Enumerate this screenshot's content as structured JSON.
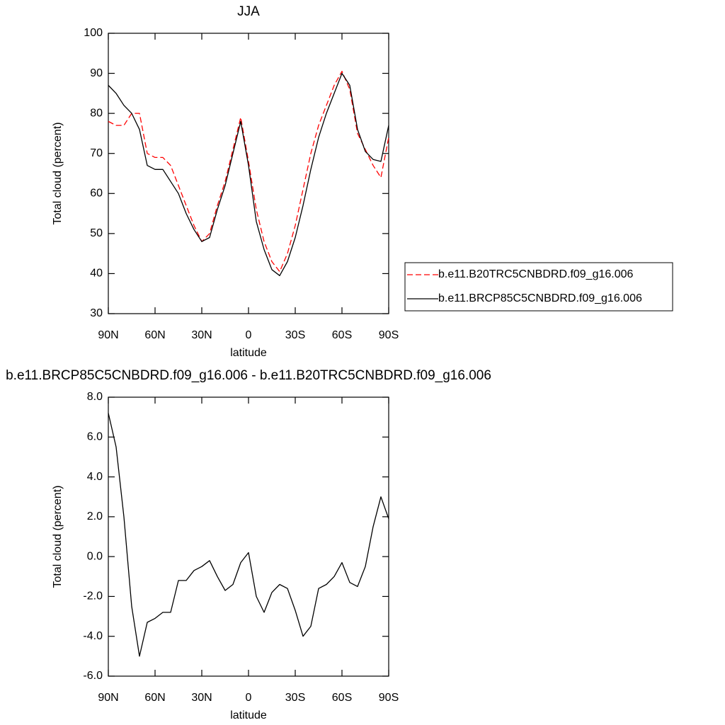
{
  "chart_data": [
    {
      "type": "line",
      "title": "JJA",
      "xlabel": "latitude",
      "ylabel": "Total cloud (percent)",
      "x": [
        90,
        85,
        80,
        75,
        70,
        65,
        60,
        55,
        50,
        45,
        40,
        35,
        30,
        25,
        20,
        15,
        10,
        5,
        0,
        -5,
        -10,
        -15,
        -20,
        -25,
        -30,
        -35,
        -40,
        -45,
        -50,
        -55,
        -60,
        -65,
        -70,
        -75,
        -80,
        -85,
        -90
      ],
      "series": [
        {
          "name": "b.e11.B20TRC5CNBDRD.f09_g16.006",
          "color": "#ff0000",
          "line_style": "dashed",
          "values": [
            78,
            77,
            77,
            80,
            80,
            70,
            69,
            69,
            67,
            62,
            57,
            52,
            48,
            50,
            57,
            63,
            71,
            79,
            68,
            56,
            48,
            43,
            40.5,
            45,
            52,
            61,
            70,
            77,
            82,
            87,
            90.5,
            86,
            75,
            71,
            67,
            64,
            74
          ]
        },
        {
          "name": "b.e11.BRCP85C5CNBDRD.f09_g16.006",
          "color": "#000000",
          "line_style": "solid",
          "values": [
            87,
            85,
            82,
            80,
            76,
            67,
            66,
            66,
            63,
            60,
            55,
            51,
            48,
            49,
            56,
            62,
            70,
            78,
            67,
            53,
            46,
            41,
            39.5,
            43,
            49,
            57,
            66,
            74,
            80,
            85,
            90,
            87,
            76,
            70.5,
            68.5,
            68,
            77
          ]
        }
      ],
      "xlim": [
        90,
        -90
      ],
      "xticks": [
        {
          "value": 90,
          "label": "90N"
        },
        {
          "value": 60,
          "label": "60N"
        },
        {
          "value": 30,
          "label": "30N"
        },
        0,
        {
          "value": -30,
          "label": "30S"
        },
        {
          "value": -60,
          "label": "60S"
        },
        {
          "value": -90,
          "label": "90S"
        }
      ],
      "ylim": [
        30,
        100
      ],
      "yticks": [
        30,
        40,
        50,
        60,
        70,
        80,
        90,
        100
      ],
      "legend": "right"
    },
    {
      "type": "line",
      "title": "b.e11.BRCP85C5CNBDRD.f09_g16.006 - b.e11.B20TRC5CNBDRD.f09_g16.006",
      "xlabel": "latitude",
      "ylabel": "Total cloud (percent)",
      "x": [
        90,
        85,
        80,
        75,
        70,
        65,
        60,
        55,
        50,
        45,
        40,
        35,
        30,
        25,
        20,
        15,
        10,
        5,
        0,
        -5,
        -10,
        -15,
        -20,
        -25,
        -30,
        -35,
        -40,
        -45,
        -50,
        -55,
        -60,
        -65,
        -70,
        -75,
        -80,
        -85,
        -90
      ],
      "values": [
        7.2,
        5.5,
        2,
        -2.5,
        -5.0,
        -3.3,
        -3.1,
        -2.8,
        -2.8,
        -1.2,
        -1.2,
        -0.7,
        -0.5,
        -0.2,
        -1.0,
        -1.7,
        -1.4,
        -0.3,
        0.2,
        -2.0,
        -2.8,
        -1.8,
        -1.4,
        -1.6,
        -2.7,
        -4.0,
        -3.5,
        -1.6,
        -1.4,
        -1.0,
        -0.3,
        -1.3,
        -1.5,
        -0.5,
        1.5,
        3.0,
        1.9
      ],
      "color": "#000000",
      "xlim": [
        90,
        -90
      ],
      "xticks": [
        {
          "value": 90,
          "label": "90N"
        },
        {
          "value": 60,
          "label": "60N"
        },
        {
          "value": 30,
          "label": "30N"
        },
        0,
        {
          "value": -30,
          "label": "30S"
        },
        {
          "value": -60,
          "label": "60S"
        },
        {
          "value": -90,
          "label": "90S"
        }
      ],
      "ylim": [
        -6,
        8
      ],
      "yticks": [
        {
          "value": -6,
          "label": "-6.0"
        },
        {
          "value": -4,
          "label": "-4.0"
        },
        {
          "value": -2,
          "label": "-2.0"
        },
        {
          "value": 0,
          "label": "0.0"
        },
        {
          "value": 2,
          "label": "2.0"
        },
        {
          "value": 4,
          "label": "4.0"
        },
        {
          "value": 6,
          "label": "6.0"
        },
        {
          "value": 8,
          "label": "8.0"
        }
      ]
    }
  ]
}
